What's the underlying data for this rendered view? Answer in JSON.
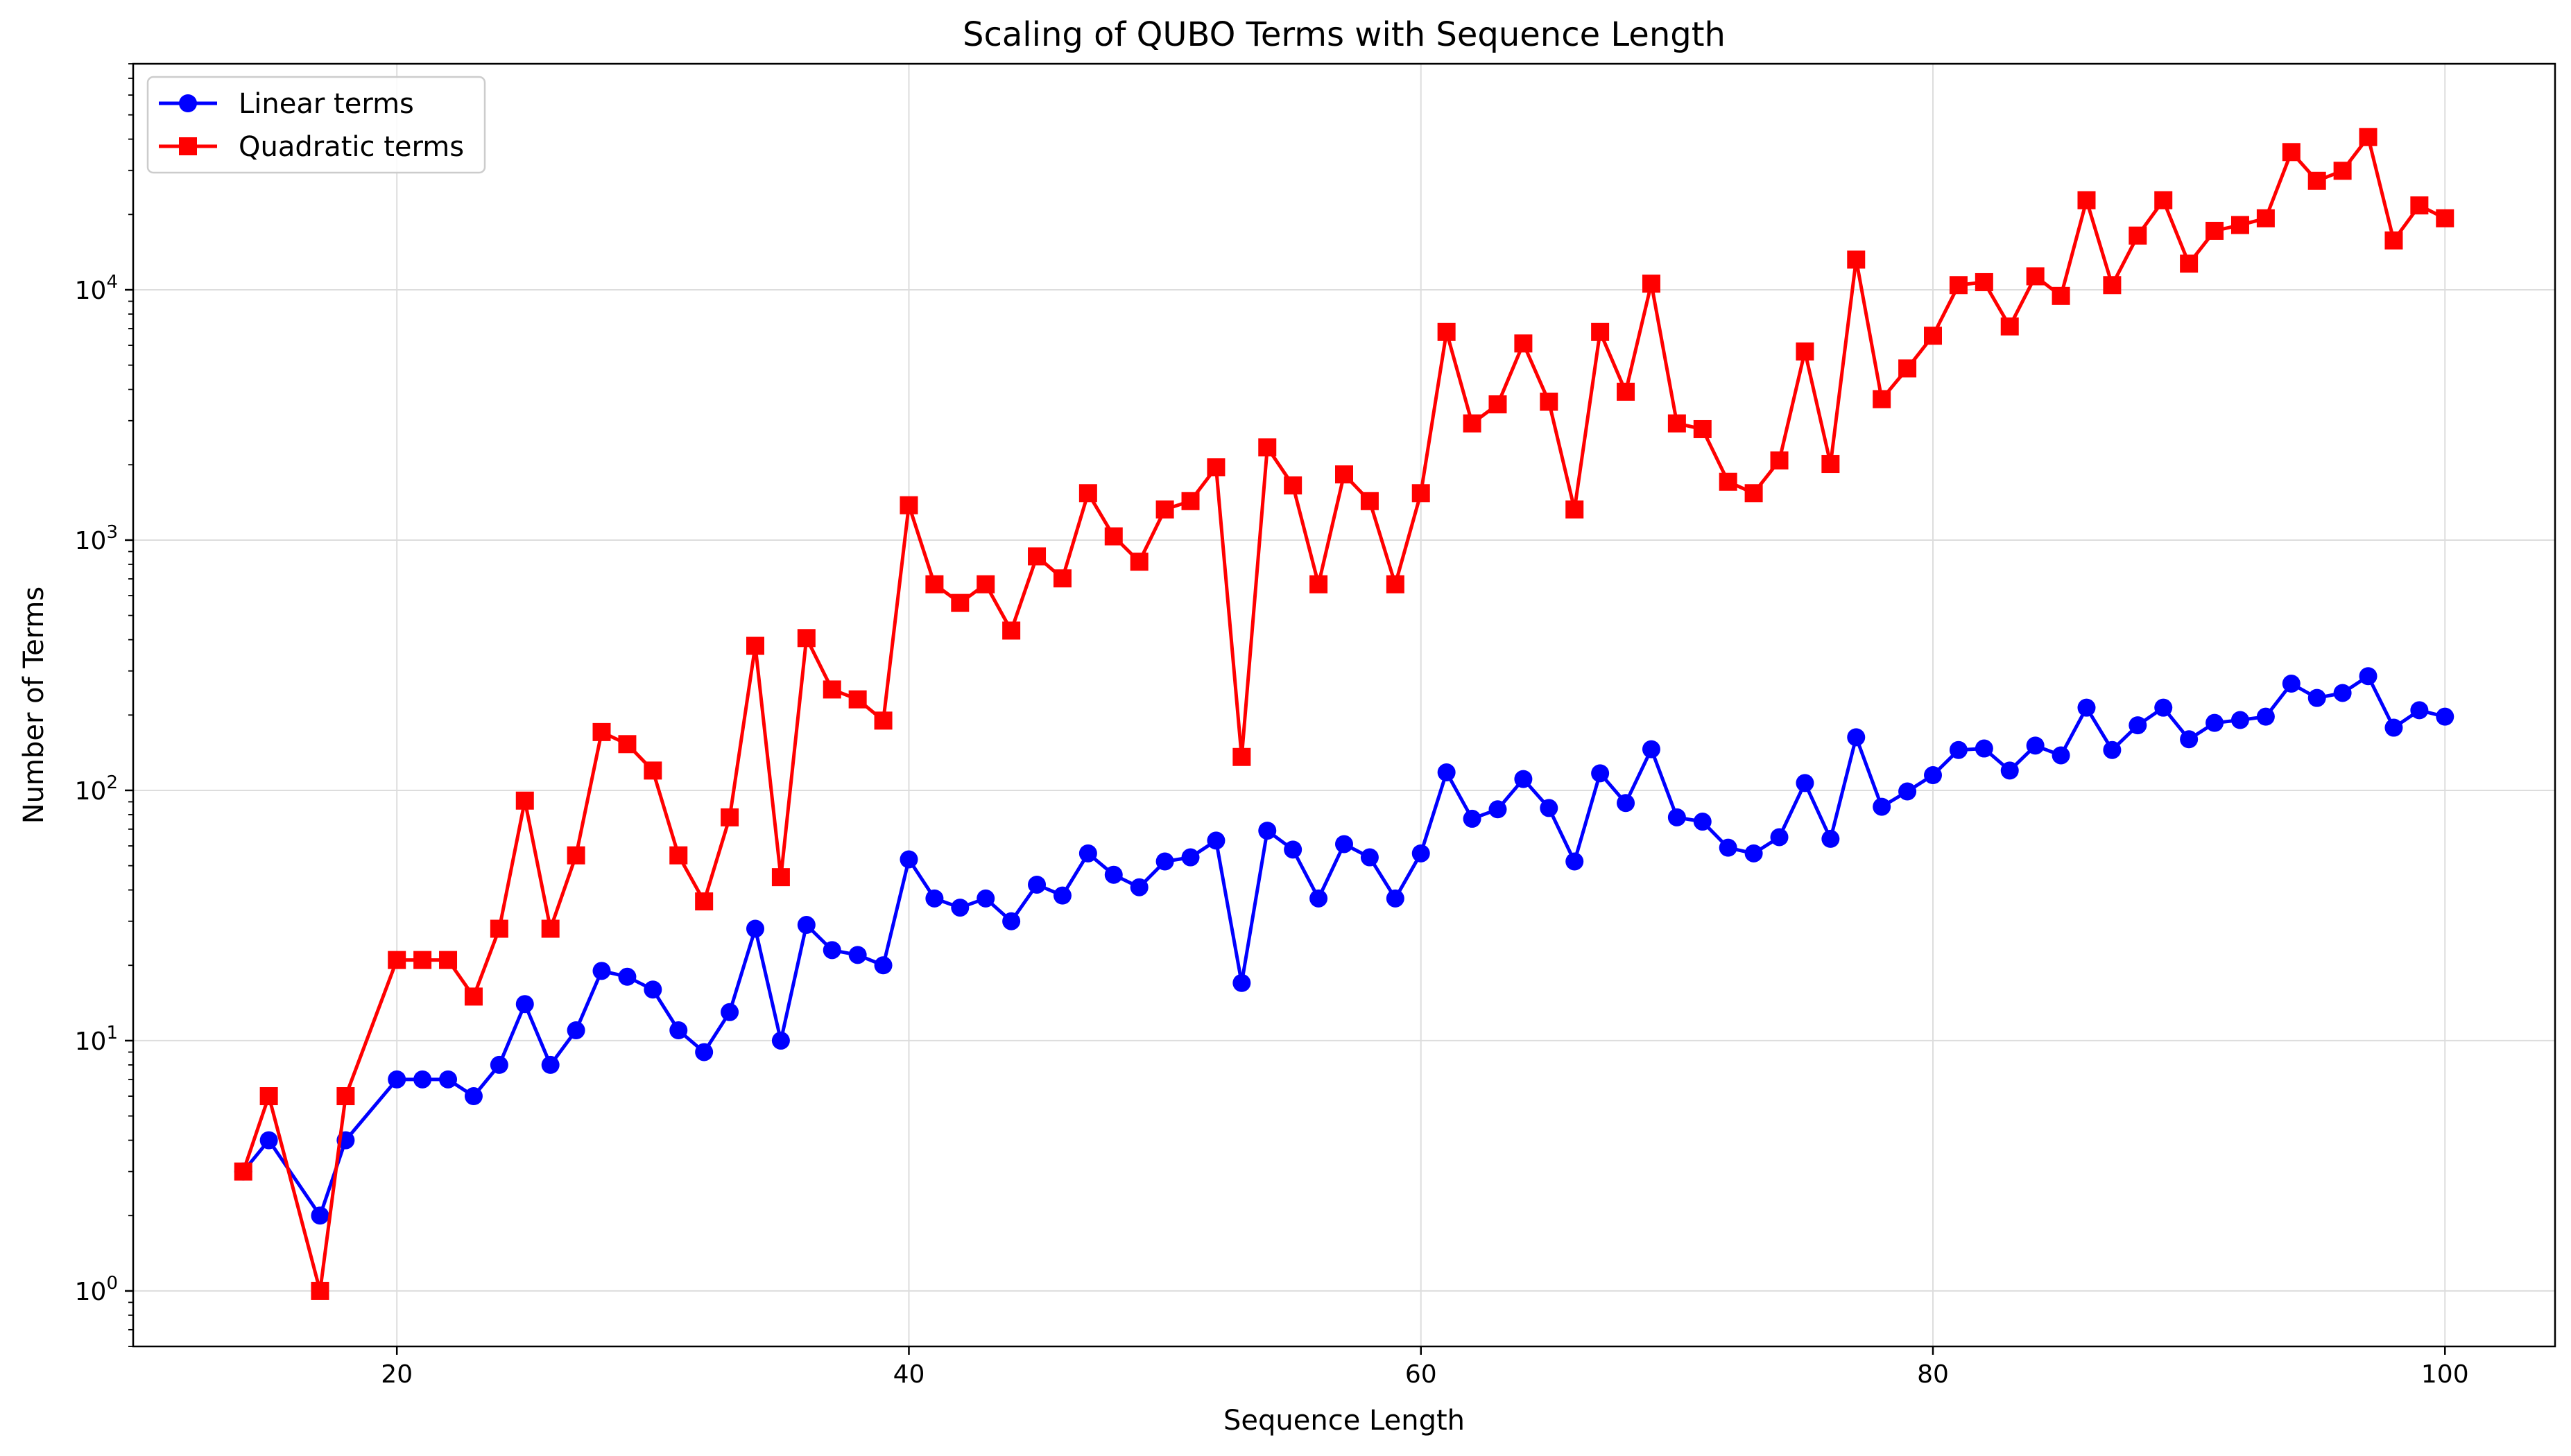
{
  "chart_data": {
    "type": "line",
    "title": "Scaling of QUBO Terms with Sequence Length",
    "xlabel": "Sequence Length",
    "ylabel": "Number of Terms",
    "xlim": [
      9.7,
      104.3
    ],
    "ylim": [
      0.6,
      80000
    ],
    "y_scale": "log",
    "grid": true,
    "legend_position": "upper left",
    "x_ticks": [
      20,
      40,
      60,
      80,
      100
    ],
    "y_ticks": [
      {
        "value": 1,
        "base": "10",
        "exp": "0"
      },
      {
        "value": 10,
        "base": "10",
        "exp": "1"
      },
      {
        "value": 100,
        "base": "10",
        "exp": "2"
      },
      {
        "value": 1000,
        "base": "10",
        "exp": "3"
      },
      {
        "value": 10000,
        "base": "10",
        "exp": "4"
      }
    ],
    "x": [
      14,
      15,
      17,
      18,
      20,
      21,
      22,
      23,
      24,
      25,
      26,
      27,
      28,
      29,
      30,
      31,
      32,
      33,
      34,
      35,
      36,
      37,
      38,
      39,
      40,
      41,
      42,
      43,
      44,
      45,
      46,
      47,
      48,
      49,
      50,
      51,
      52,
      53,
      54,
      55,
      56,
      57,
      58,
      59,
      60,
      61,
      62,
      63,
      64,
      65,
      66,
      67,
      68,
      69,
      70,
      71,
      72,
      73,
      74,
      75,
      76,
      77,
      78,
      79,
      80,
      81,
      82,
      83,
      84,
      85,
      86,
      87,
      88,
      89,
      90,
      91,
      92,
      93,
      94,
      95,
      96,
      97,
      98,
      99,
      100
    ],
    "series": [
      {
        "name": "Linear terms",
        "color": "#0000ff",
        "marker": "circle",
        "values": [
          3,
          4,
          2,
          4,
          7,
          7,
          7,
          6,
          8,
          14,
          8,
          11,
          19,
          18,
          16,
          11,
          9,
          13,
          28,
          10,
          29,
          23,
          22,
          20,
          53,
          37,
          34,
          37,
          30,
          42,
          38,
          56,
          46,
          41,
          52,
          54,
          63,
          17,
          69,
          58,
          37,
          61,
          54,
          37,
          56,
          118,
          77,
          84,
          111,
          85,
          52,
          117,
          89,
          146,
          78,
          75,
          59,
          56,
          65,
          107,
          64,
          163,
          86,
          99,
          115,
          145,
          147,
          120,
          151,
          138,
          214,
          145,
          182,
          214,
          160,
          186,
          191,
          197,
          267,
          234,
          245,
          286,
          178,
          209,
          197
        ]
      },
      {
        "name": "Quadratic terms",
        "color": "#ff0000",
        "marker": "square",
        "values": [
          3,
          6,
          1,
          6,
          21,
          21,
          21,
          15,
          28,
          91,
          28,
          55,
          171,
          153,
          120,
          55,
          36,
          78,
          378,
          45,
          406,
          253,
          231,
          190,
          1378,
          666,
          561,
          666,
          435,
          861,
          703,
          1540,
          1035,
          820,
          1326,
          1431,
          1953,
          136,
          2346,
          1653,
          666,
          1830,
          1431,
          666,
          1540,
          6786,
          2926,
          3486,
          6105,
          3570,
          1326,
          6786,
          3916,
          10585,
          2926,
          2775,
          1711,
          1540,
          2080,
          5671,
          2016,
          13203,
          3655,
          4851,
          6555,
          10440,
          10731,
          7140,
          11325,
          9453,
          22791,
          10440,
          16471,
          22791,
          12720,
          17205,
          18145,
          19306,
          35511,
          27261,
          29890,
          40755,
          15753,
          21736,
          19306
        ]
      }
    ]
  }
}
